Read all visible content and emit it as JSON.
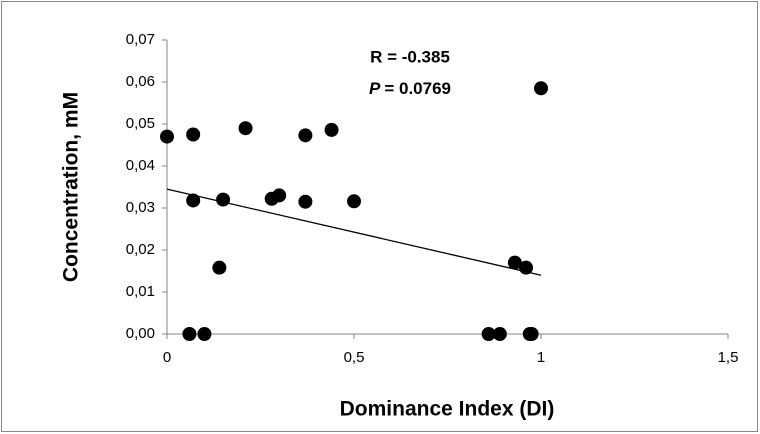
{
  "chart_data": {
    "type": "scatter",
    "x_label": "Dominance Index (DI)",
    "y_label": "Concentration, mM",
    "annotations": [
      "R = -0.385",
      "P",
      "= 0.0769"
    ],
    "color": "#000000",
    "x": [
      0.0,
      0.07,
      0.21,
      0.37,
      0.44,
      0.07,
      0.15,
      0.28,
      0.3,
      0.37,
      0.5,
      0.14,
      0.06,
      0.1,
      0.86,
      0.89,
      0.97,
      0.975,
      0.93,
      0.96,
      1.0
    ],
    "values": [
      0.047,
      0.0475,
      0.049,
      0.0473,
      0.0486,
      0.0318,
      0.032,
      0.0322,
      0.033,
      0.0315,
      0.0316,
      0.0158,
      0.0,
      0.0,
      0.0,
      0.0,
      0.0,
      0.0,
      0.017,
      0.0158,
      0.0585
    ],
    "trendline": {
      "x": [
        0,
        1
      ],
      "y": [
        0.0345,
        0.014
      ]
    },
    "xlim": [
      0,
      1.5
    ],
    "xticks": [
      0,
      {
        "value": 0.5,
        "label": "0,5"
      },
      1,
      {
        "value": 1.5,
        "label": "1,5"
      }
    ],
    "ylim": [
      0,
      0.07
    ],
    "yticks": [
      {
        "value": 0,
        "label": "0,00"
      },
      {
        "value": 0.01,
        "label": "0,01"
      },
      {
        "value": 0.02,
        "label": "0,02"
      },
      {
        "value": 0.03,
        "label": "0,03"
      },
      {
        "value": 0.04,
        "label": "0,04"
      },
      {
        "value": 0.05,
        "label": "0,05"
      },
      {
        "value": 0.06,
        "label": "0,06"
      },
      {
        "value": 0.07,
        "label": "0,07"
      }
    ],
    "grid": false
  }
}
